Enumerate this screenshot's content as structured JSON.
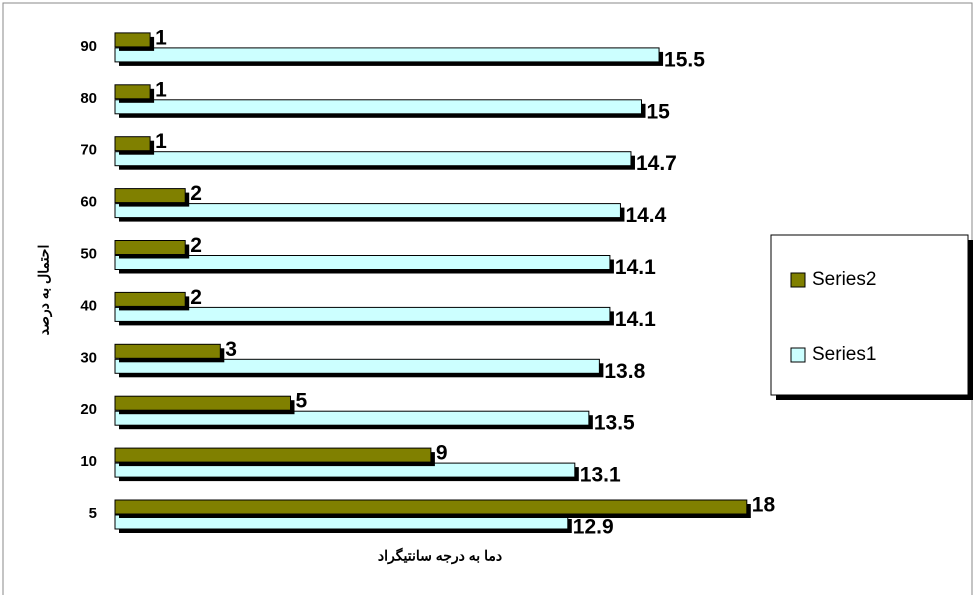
{
  "chart_data": {
    "type": "barh",
    "y_label": "احتمال به درصد",
    "x_label": "دما به درجه سانتیگراد",
    "categories": [
      "5",
      "10",
      "20",
      "30",
      "40",
      "50",
      "60",
      "70",
      "80",
      "90"
    ],
    "series": [
      {
        "name": "Series1",
        "color": "#ccffff",
        "values": [
          12.9,
          13.1,
          13.5,
          13.8,
          14.1,
          14.1,
          14.4,
          14.7,
          15,
          15.5
        ]
      },
      {
        "name": "Series2",
        "color": "#808000",
        "values": [
          18,
          9,
          5,
          3,
          2,
          2,
          2,
          1,
          1,
          1
        ]
      }
    ],
    "xlim": [
      0,
      20
    ],
    "legend": "right"
  }
}
